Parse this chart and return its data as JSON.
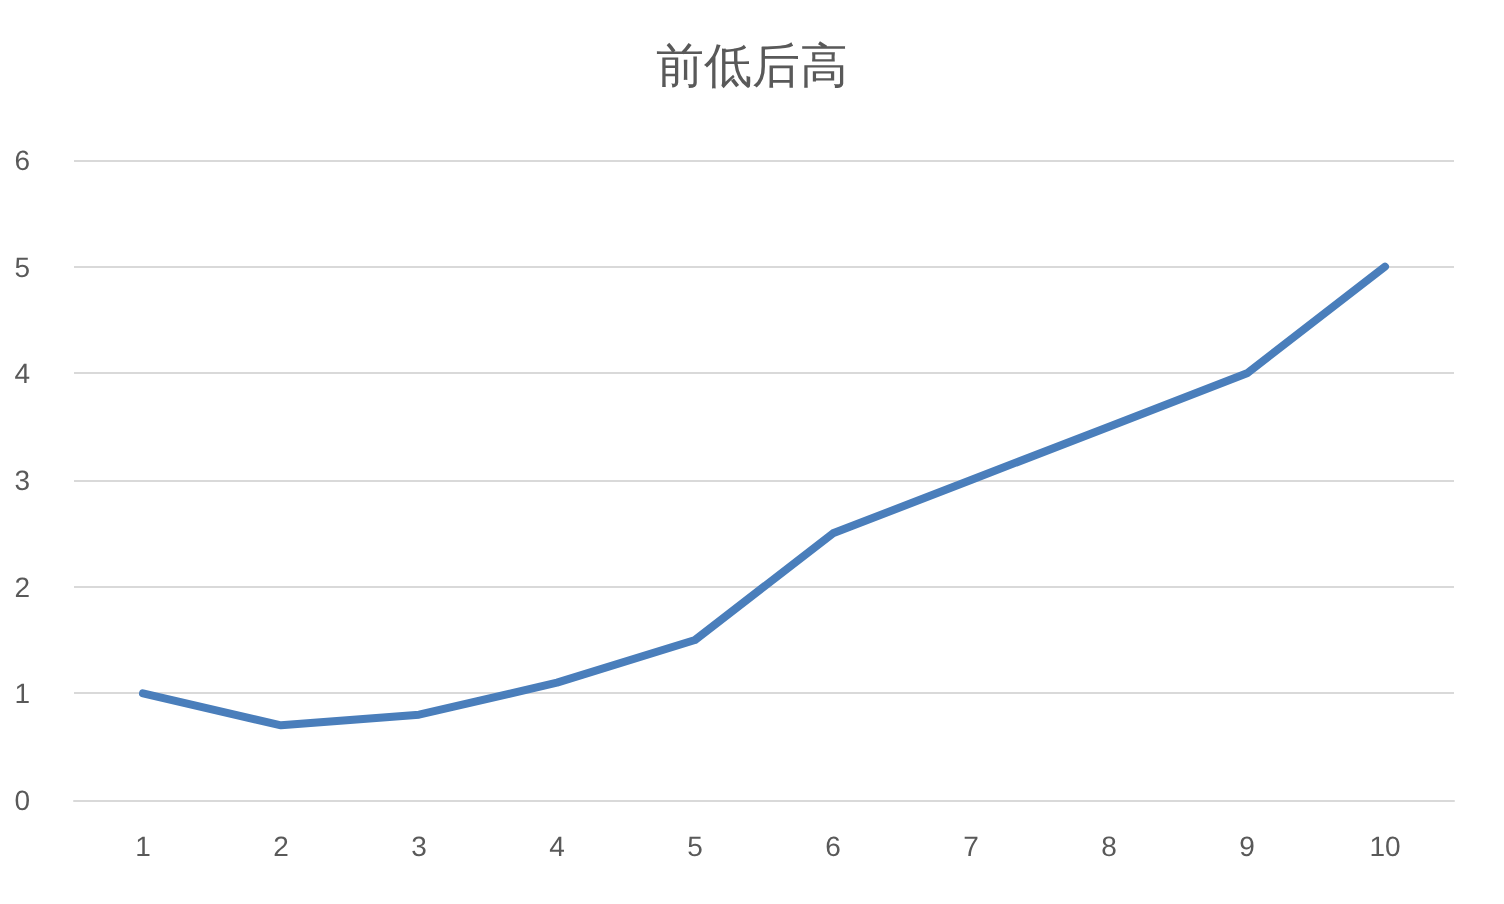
{
  "chart_data": {
    "type": "line",
    "title": "前低后高",
    "categories": [
      "1",
      "2",
      "3",
      "4",
      "5",
      "6",
      "7",
      "8",
      "9",
      "10"
    ],
    "series": [
      {
        "color": "#4a7ebb",
        "values": [
          1,
          0.7,
          0.8,
          1.1,
          1.5,
          2.5,
          3,
          3.5,
          4,
          5
        ]
      }
    ],
    "ylim": [
      0,
      6
    ],
    "yticks": [
      0,
      1,
      2,
      3,
      4,
      5,
      6
    ],
    "grid": "y",
    "marker": "none",
    "line_style": "solid"
  }
}
